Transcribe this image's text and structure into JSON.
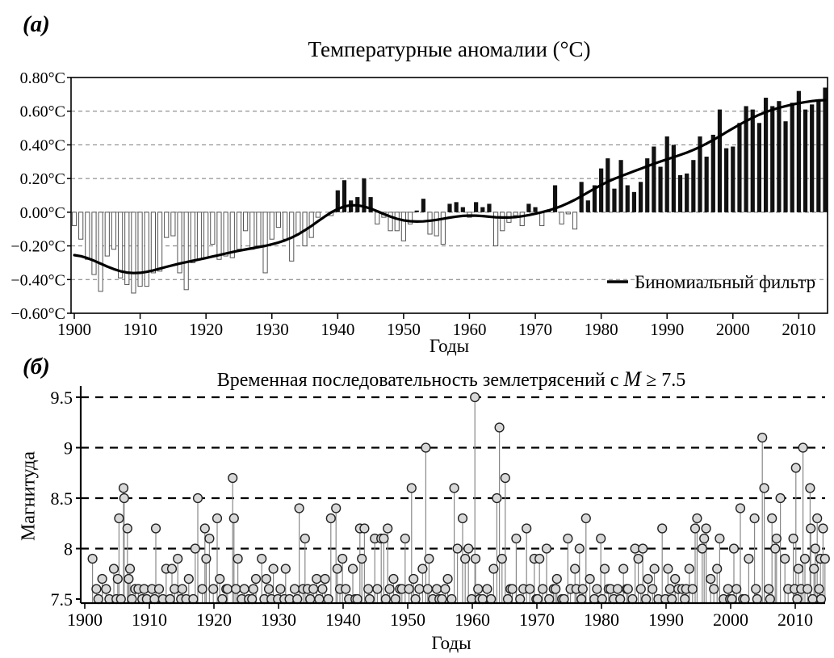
{
  "page": {
    "background": "#ffffff"
  },
  "panel_a": {
    "label": "(а)",
    "xlabel": "Годы"
  },
  "panel_b": {
    "label": "(б)",
    "title_prefix": "Временная последовательность землетрясений с ",
    "title_m": "M",
    "title_suffix": " ≥ 7.5",
    "xlabel": "Годы"
  },
  "chart_data": [
    {
      "type": "bar",
      "title": "Температурные аномалии (°C)",
      "xlabel": "Годы",
      "ylabel": "",
      "legend": "Биномиальный фильтр",
      "x_start": 1900,
      "x_end": 2014,
      "ylim": [
        -0.6,
        0.8
      ],
      "yticks": [
        0.8,
        0.6,
        0.4,
        0.2,
        0.0,
        -0.2,
        -0.4,
        -0.6
      ],
      "ytick_labels": [
        "0.80°C",
        "0.60°C",
        "0.40°C",
        "0.20°C",
        "0.00°C",
        "−0.20°C",
        "−0.40°C",
        "−0.60°C"
      ],
      "xticks": [
        1900,
        1910,
        1920,
        1930,
        1940,
        1950,
        1960,
        1970,
        1980,
        1990,
        2000,
        2010
      ],
      "bar_color_positive": "#111111",
      "bar_color_negative_fill": "#ffffff",
      "bar_color_negative_stroke": "#555555",
      "line_color": "#000000",
      "values": [
        -0.08,
        -0.16,
        -0.28,
        -0.37,
        -0.47,
        -0.26,
        -0.22,
        -0.39,
        -0.43,
        -0.48,
        -0.44,
        -0.44,
        -0.36,
        -0.35,
        -0.15,
        -0.14,
        -0.36,
        -0.46,
        -0.3,
        -0.28,
        -0.27,
        -0.19,
        -0.28,
        -0.26,
        -0.27,
        -0.22,
        -0.11,
        -0.22,
        -0.2,
        -0.36,
        -0.16,
        -0.09,
        -0.16,
        -0.29,
        -0.13,
        -0.2,
        -0.15,
        -0.03,
        0.0,
        -0.02,
        0.13,
        0.19,
        0.07,
        0.09,
        0.2,
        0.09,
        -0.07,
        -0.03,
        -0.11,
        -0.11,
        -0.17,
        -0.07,
        0.01,
        0.08,
        -0.13,
        -0.14,
        -0.19,
        0.05,
        0.06,
        0.03,
        -0.03,
        0.06,
        0.03,
        0.05,
        -0.2,
        -0.11,
        -0.06,
        -0.02,
        -0.08,
        0.05,
        0.03,
        -0.08,
        0.01,
        0.16,
        -0.07,
        -0.01,
        -0.1,
        0.18,
        0.07,
        0.16,
        0.26,
        0.32,
        0.14,
        0.31,
        0.16,
        0.12,
        0.18,
        0.32,
        0.39,
        0.27,
        0.45,
        0.4,
        0.22,
        0.23,
        0.31,
        0.45,
        0.33,
        0.46,
        0.61,
        0.38,
        0.39,
        0.53,
        0.63,
        0.61,
        0.53,
        0.68,
        0.63,
        0.66,
        0.54,
        0.65,
        0.72,
        0.61,
        0.64,
        0.67,
        0.74
      ]
    },
    {
      "type": "scatter",
      "title": "Временная последовательность землетрясений с M ≥ 7.5",
      "xlabel": "Годы",
      "ylabel": "Магнитуда",
      "ylim": [
        7.5,
        9.6
      ],
      "yticks": [
        7.5,
        8,
        8.5,
        9,
        9.5
      ],
      "ytick_labels": [
        "7.5",
        "8",
        "8.5",
        "9",
        "9.5"
      ],
      "xticks": [
        1900,
        1910,
        1920,
        1930,
        1940,
        1950,
        1960,
        1970,
        1980,
        1990,
        2000,
        2010
      ],
      "marker_fill": "#d8d8d8",
      "marker_stroke": "#222222",
      "points": [
        [
          1901.2,
          7.9
        ],
        [
          1901.8,
          7.6
        ],
        [
          1902.1,
          7.5
        ],
        [
          1902.7,
          7.7
        ],
        [
          1903.3,
          7.6
        ],
        [
          1903.8,
          7.5
        ],
        [
          1904.5,
          7.8
        ],
        [
          1904.9,
          7.5
        ],
        [
          1905.1,
          7.7
        ],
        [
          1905.3,
          8.3
        ],
        [
          1905.6,
          7.5
        ],
        [
          1906.0,
          8.6
        ],
        [
          1906.1,
          8.5
        ],
        [
          1906.6,
          8.2
        ],
        [
          1906.8,
          7.7
        ],
        [
          1907.0,
          7.8
        ],
        [
          1907.3,
          7.5
        ],
        [
          1907.8,
          7.6
        ],
        [
          1908.3,
          7.6
        ],
        [
          1908.9,
          7.5
        ],
        [
          1909.2,
          7.6
        ],
        [
          1909.6,
          7.5
        ],
        [
          1910.4,
          7.6
        ],
        [
          1910.8,
          7.5
        ],
        [
          1911.0,
          8.2
        ],
        [
          1911.5,
          7.6
        ],
        [
          1912.1,
          7.5
        ],
        [
          1912.6,
          7.8
        ],
        [
          1913.2,
          7.5
        ],
        [
          1913.5,
          7.8
        ],
        [
          1913.9,
          7.6
        ],
        [
          1914.4,
          7.9
        ],
        [
          1914.9,
          7.5
        ],
        [
          1915.1,
          7.6
        ],
        [
          1915.7,
          7.5
        ],
        [
          1916.1,
          7.7
        ],
        [
          1916.8,
          7.5
        ],
        [
          1917.1,
          8.0
        ],
        [
          1917.5,
          8.5
        ],
        [
          1918.2,
          7.6
        ],
        [
          1918.6,
          8.2
        ],
        [
          1918.8,
          7.9
        ],
        [
          1919.3,
          8.1
        ],
        [
          1919.9,
          7.6
        ],
        [
          1920.5,
          8.3
        ],
        [
          1920.9,
          7.7
        ],
        [
          1921.3,
          7.5
        ],
        [
          1921.9,
          7.6
        ],
        [
          1922.1,
          7.6
        ],
        [
          1922.9,
          8.7
        ],
        [
          1923.1,
          8.3
        ],
        [
          1923.4,
          7.6
        ],
        [
          1923.7,
          7.9
        ],
        [
          1924.3,
          7.5
        ],
        [
          1924.7,
          7.6
        ],
        [
          1925.4,
          7.5
        ],
        [
          1925.9,
          7.5
        ],
        [
          1926.1,
          7.6
        ],
        [
          1926.5,
          7.7
        ],
        [
          1927.4,
          7.9
        ],
        [
          1927.8,
          7.5
        ],
        [
          1928.1,
          7.7
        ],
        [
          1928.5,
          7.6
        ],
        [
          1928.9,
          7.5
        ],
        [
          1929.2,
          7.8
        ],
        [
          1929.9,
          7.5
        ],
        [
          1930.3,
          7.6
        ],
        [
          1930.9,
          7.5
        ],
        [
          1931.1,
          7.8
        ],
        [
          1931.7,
          7.5
        ],
        [
          1932.5,
          7.6
        ],
        [
          1932.9,
          7.5
        ],
        [
          1933.2,
          8.4
        ],
        [
          1933.8,
          7.6
        ],
        [
          1934.1,
          8.1
        ],
        [
          1934.5,
          7.6
        ],
        [
          1934.9,
          7.5
        ],
        [
          1935.4,
          7.6
        ],
        [
          1935.9,
          7.7
        ],
        [
          1936.3,
          7.5
        ],
        [
          1936.8,
          7.6
        ],
        [
          1937.2,
          7.7
        ],
        [
          1937.7,
          7.5
        ],
        [
          1938.1,
          8.3
        ],
        [
          1938.9,
          8.4
        ],
        [
          1939.1,
          7.8
        ],
        [
          1939.5,
          7.6
        ],
        [
          1939.9,
          7.9
        ],
        [
          1940.4,
          7.6
        ],
        [
          1940.9,
          7.5
        ],
        [
          1941.5,
          7.8
        ],
        [
          1941.9,
          7.5
        ],
        [
          1942.2,
          7.5
        ],
        [
          1942.6,
          8.2
        ],
        [
          1942.9,
          7.9
        ],
        [
          1943.3,
          8.2
        ],
        [
          1943.9,
          7.6
        ],
        [
          1944.1,
          7.5
        ],
        [
          1944.9,
          8.1
        ],
        [
          1945.3,
          7.6
        ],
        [
          1945.9,
          8.1
        ],
        [
          1946.3,
          8.1
        ],
        [
          1946.6,
          7.5
        ],
        [
          1946.9,
          8.2
        ],
        [
          1947.2,
          7.6
        ],
        [
          1947.8,
          7.7
        ],
        [
          1948.1,
          7.5
        ],
        [
          1948.8,
          7.6
        ],
        [
          1949.1,
          7.6
        ],
        [
          1949.6,
          8.1
        ],
        [
          1950.2,
          7.6
        ],
        [
          1950.6,
          8.6
        ],
        [
          1950.9,
          7.7
        ],
        [
          1951.2,
          7.5
        ],
        [
          1951.8,
          7.6
        ],
        [
          1952.3,
          7.8
        ],
        [
          1952.8,
          9.0
        ],
        [
          1953.1,
          7.6
        ],
        [
          1953.3,
          7.9
        ],
        [
          1953.9,
          7.5
        ],
        [
          1954.5,
          7.6
        ],
        [
          1954.9,
          7.5
        ],
        [
          1955.3,
          7.5
        ],
        [
          1955.8,
          7.6
        ],
        [
          1956.2,
          7.7
        ],
        [
          1956.8,
          7.5
        ],
        [
          1957.2,
          8.6
        ],
        [
          1957.7,
          8.0
        ],
        [
          1958.5,
          8.3
        ],
        [
          1958.9,
          7.9
        ],
        [
          1959.4,
          8.0
        ],
        [
          1959.9,
          7.5
        ],
        [
          1960.4,
          9.5
        ],
        [
          1960.5,
          7.9
        ],
        [
          1960.9,
          7.6
        ],
        [
          1961.1,
          7.5
        ],
        [
          1961.6,
          7.5
        ],
        [
          1962.3,
          7.6
        ],
        [
          1962.9,
          7.5
        ],
        [
          1963.3,
          7.8
        ],
        [
          1963.8,
          8.5
        ],
        [
          1964.2,
          9.2
        ],
        [
          1964.6,
          7.9
        ],
        [
          1965.1,
          8.7
        ],
        [
          1965.5,
          7.5
        ],
        [
          1965.9,
          7.6
        ],
        [
          1966.2,
          7.6
        ],
        [
          1966.8,
          8.1
        ],
        [
          1967.4,
          7.5
        ],
        [
          1967.9,
          7.6
        ],
        [
          1968.4,
          8.2
        ],
        [
          1968.9,
          7.6
        ],
        [
          1969.6,
          7.9
        ],
        [
          1969.9,
          7.5
        ],
        [
          1970.1,
          7.5
        ],
        [
          1970.4,
          7.9
        ],
        [
          1970.9,
          7.6
        ],
        [
          1971.5,
          8.0
        ],
        [
          1971.9,
          7.5
        ],
        [
          1972.6,
          7.6
        ],
        [
          1972.9,
          7.6
        ],
        [
          1973.1,
          7.7
        ],
        [
          1973.9,
          7.5
        ],
        [
          1974.2,
          7.5
        ],
        [
          1974.8,
          8.1
        ],
        [
          1975.2,
          7.6
        ],
        [
          1975.9,
          7.8
        ],
        [
          1976.1,
          7.6
        ],
        [
          1976.6,
          8.0
        ],
        [
          1976.9,
          7.5
        ],
        [
          1977.1,
          7.6
        ],
        [
          1977.6,
          8.3
        ],
        [
          1978.2,
          7.7
        ],
        [
          1978.9,
          7.5
        ],
        [
          1979.3,
          7.6
        ],
        [
          1979.9,
          8.1
        ],
        [
          1980.1,
          7.5
        ],
        [
          1980.5,
          7.8
        ],
        [
          1981.1,
          7.6
        ],
        [
          1981.4,
          7.6
        ],
        [
          1981.9,
          7.5
        ],
        [
          1982.5,
          7.6
        ],
        [
          1982.9,
          7.5
        ],
        [
          1983.4,
          7.8
        ],
        [
          1983.9,
          7.6
        ],
        [
          1984.1,
          7.6
        ],
        [
          1984.8,
          7.5
        ],
        [
          1985.2,
          8.0
        ],
        [
          1985.7,
          7.9
        ],
        [
          1986.1,
          7.6
        ],
        [
          1986.4,
          8.0
        ],
        [
          1986.9,
          7.5
        ],
        [
          1987.2,
          7.7
        ],
        [
          1987.9,
          7.6
        ],
        [
          1988.2,
          7.8
        ],
        [
          1988.8,
          7.5
        ],
        [
          1989.4,
          8.2
        ],
        [
          1989.9,
          7.5
        ],
        [
          1990.3,
          7.8
        ],
        [
          1990.6,
          7.6
        ],
        [
          1990.9,
          7.5
        ],
        [
          1991.4,
          7.7
        ],
        [
          1991.9,
          7.6
        ],
        [
          1992.5,
          7.6
        ],
        [
          1992.9,
          7.5
        ],
        [
          1993.1,
          7.6
        ],
        [
          1993.6,
          7.8
        ],
        [
          1994.1,
          7.6
        ],
        [
          1994.5,
          8.2
        ],
        [
          1994.8,
          8.3
        ],
        [
          1995.6,
          8.0
        ],
        [
          1995.9,
          8.1
        ],
        [
          1996.2,
          8.2
        ],
        [
          1996.9,
          7.7
        ],
        [
          1997.4,
          7.6
        ],
        [
          1997.9,
          7.8
        ],
        [
          1998.3,
          8.1
        ],
        [
          1998.9,
          7.5
        ],
        [
          1999.6,
          7.6
        ],
        [
          1999.9,
          7.5
        ],
        [
          2000.2,
          7.5
        ],
        [
          2000.5,
          8.0
        ],
        [
          2000.9,
          7.6
        ],
        [
          2001.5,
          8.4
        ],
        [
          2001.9,
          7.5
        ],
        [
          2002.2,
          7.5
        ],
        [
          2002.8,
          7.9
        ],
        [
          2003.7,
          8.3
        ],
        [
          2003.9,
          7.6
        ],
        [
          2004.1,
          7.5
        ],
        [
          2004.9,
          9.1
        ],
        [
          2005.2,
          8.6
        ],
        [
          2005.9,
          7.6
        ],
        [
          2006.1,
          7.5
        ],
        [
          2006.4,
          8.3
        ],
        [
          2006.9,
          8.0
        ],
        [
          2007.1,
          8.1
        ],
        [
          2007.7,
          8.5
        ],
        [
          2008.4,
          7.9
        ],
        [
          2008.9,
          7.6
        ],
        [
          2009.7,
          8.1
        ],
        [
          2009.9,
          7.6
        ],
        [
          2010.1,
          8.8
        ],
        [
          2010.3,
          7.5
        ],
        [
          2010.5,
          7.8
        ],
        [
          2010.9,
          7.6
        ],
        [
          2011.2,
          9.0
        ],
        [
          2011.5,
          7.9
        ],
        [
          2011.9,
          7.6
        ],
        [
          2012.3,
          8.6
        ],
        [
          2012.4,
          8.2
        ],
        [
          2012.7,
          7.5
        ],
        [
          2012.9,
          7.8
        ],
        [
          2013.1,
          8.0
        ],
        [
          2013.4,
          8.3
        ],
        [
          2013.7,
          7.6
        ],
        [
          2013.9,
          7.9
        ],
        [
          2014.0,
          7.5
        ],
        [
          2014.3,
          8.2
        ],
        [
          2014.6,
          7.9
        ]
      ]
    }
  ]
}
